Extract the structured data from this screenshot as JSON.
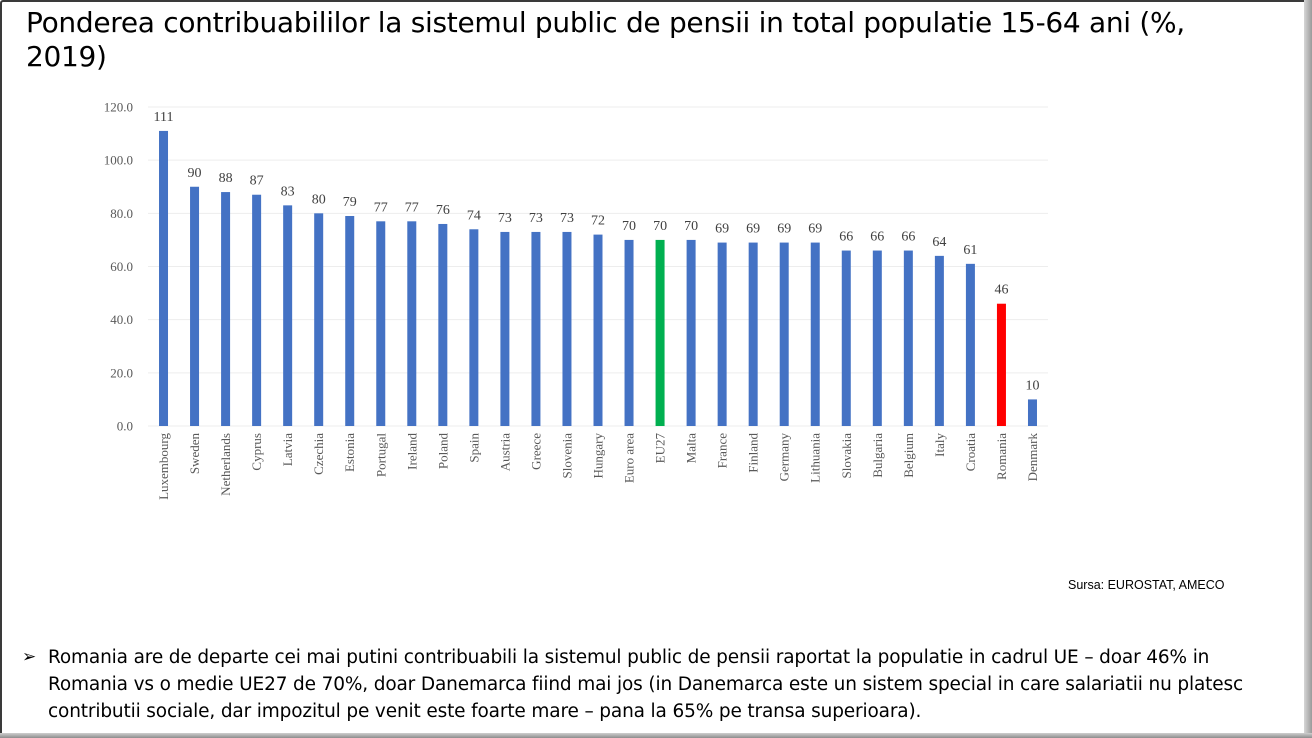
{
  "slide": {
    "title": "Ponderea contribuabililor la sistemul public de pensii in total populatie 15-64 ani (%, 2019)",
    "source": "Sursa: EUROSTAT, AMECO",
    "bullet_icon": "arrow-bullet-icon",
    "bullet_text": "Romania are de departe cei mai putini contribuabili la sistemul public de pensii raportat la populatie in cadrul UE – doar 46% in Romania vs o medie UE27 de 70%, doar Danemarca fiind mai jos (in Danemarca este un sistem special in care salariatii nu platesc contributii sociale, dar impozitul pe venit este foarte mare – pana la 65% pe transa superioara)."
  },
  "chart_data": {
    "type": "bar",
    "title": "",
    "xlabel": "",
    "ylabel": "",
    "ylim": [
      0,
      120
    ],
    "yticks": [
      "0.0",
      "20.0",
      "40.0",
      "60.0",
      "80.0",
      "100.0",
      "120.0"
    ],
    "grid": true,
    "legend": "none",
    "categories": [
      "Luxembourg",
      "Sweden",
      "Netherlands",
      "Cyprus",
      "Latvia",
      "Czechia",
      "Estonia",
      "Portugal",
      "Ireland",
      "Poland",
      "Spain",
      "Austria",
      "Greece",
      "Slovenia",
      "Hungary",
      "Euro area",
      "EU27",
      "Malta",
      "France",
      "Finland",
      "Germany",
      "Lithuania",
      "Slovakia",
      "Bulgaria",
      "Belgium",
      "Italy",
      "Croatia",
      "Romania",
      "Denmark"
    ],
    "values": [
      111,
      90,
      88,
      87,
      83,
      80,
      79,
      77,
      77,
      76,
      74,
      73,
      73,
      73,
      72,
      70,
      70,
      70,
      69,
      69,
      69,
      69,
      66,
      66,
      66,
      64,
      61,
      46,
      10
    ],
    "data_labels": [
      "111",
      "90",
      "88",
      "87",
      "83",
      "80",
      "79",
      "77",
      "77",
      "76",
      "74",
      "73",
      "73",
      "73",
      "72",
      "70",
      "70",
      "70",
      "69",
      "69",
      "69",
      "69",
      "66",
      "66",
      "66",
      "64",
      "61",
      "46",
      "10"
    ],
    "colors": {
      "default": "#4472C4",
      "highlight": {
        "EU27": "#00B050",
        "Romania": "#FF0000"
      },
      "gridline": "#EDEDED",
      "tick_text": "#595959"
    }
  }
}
